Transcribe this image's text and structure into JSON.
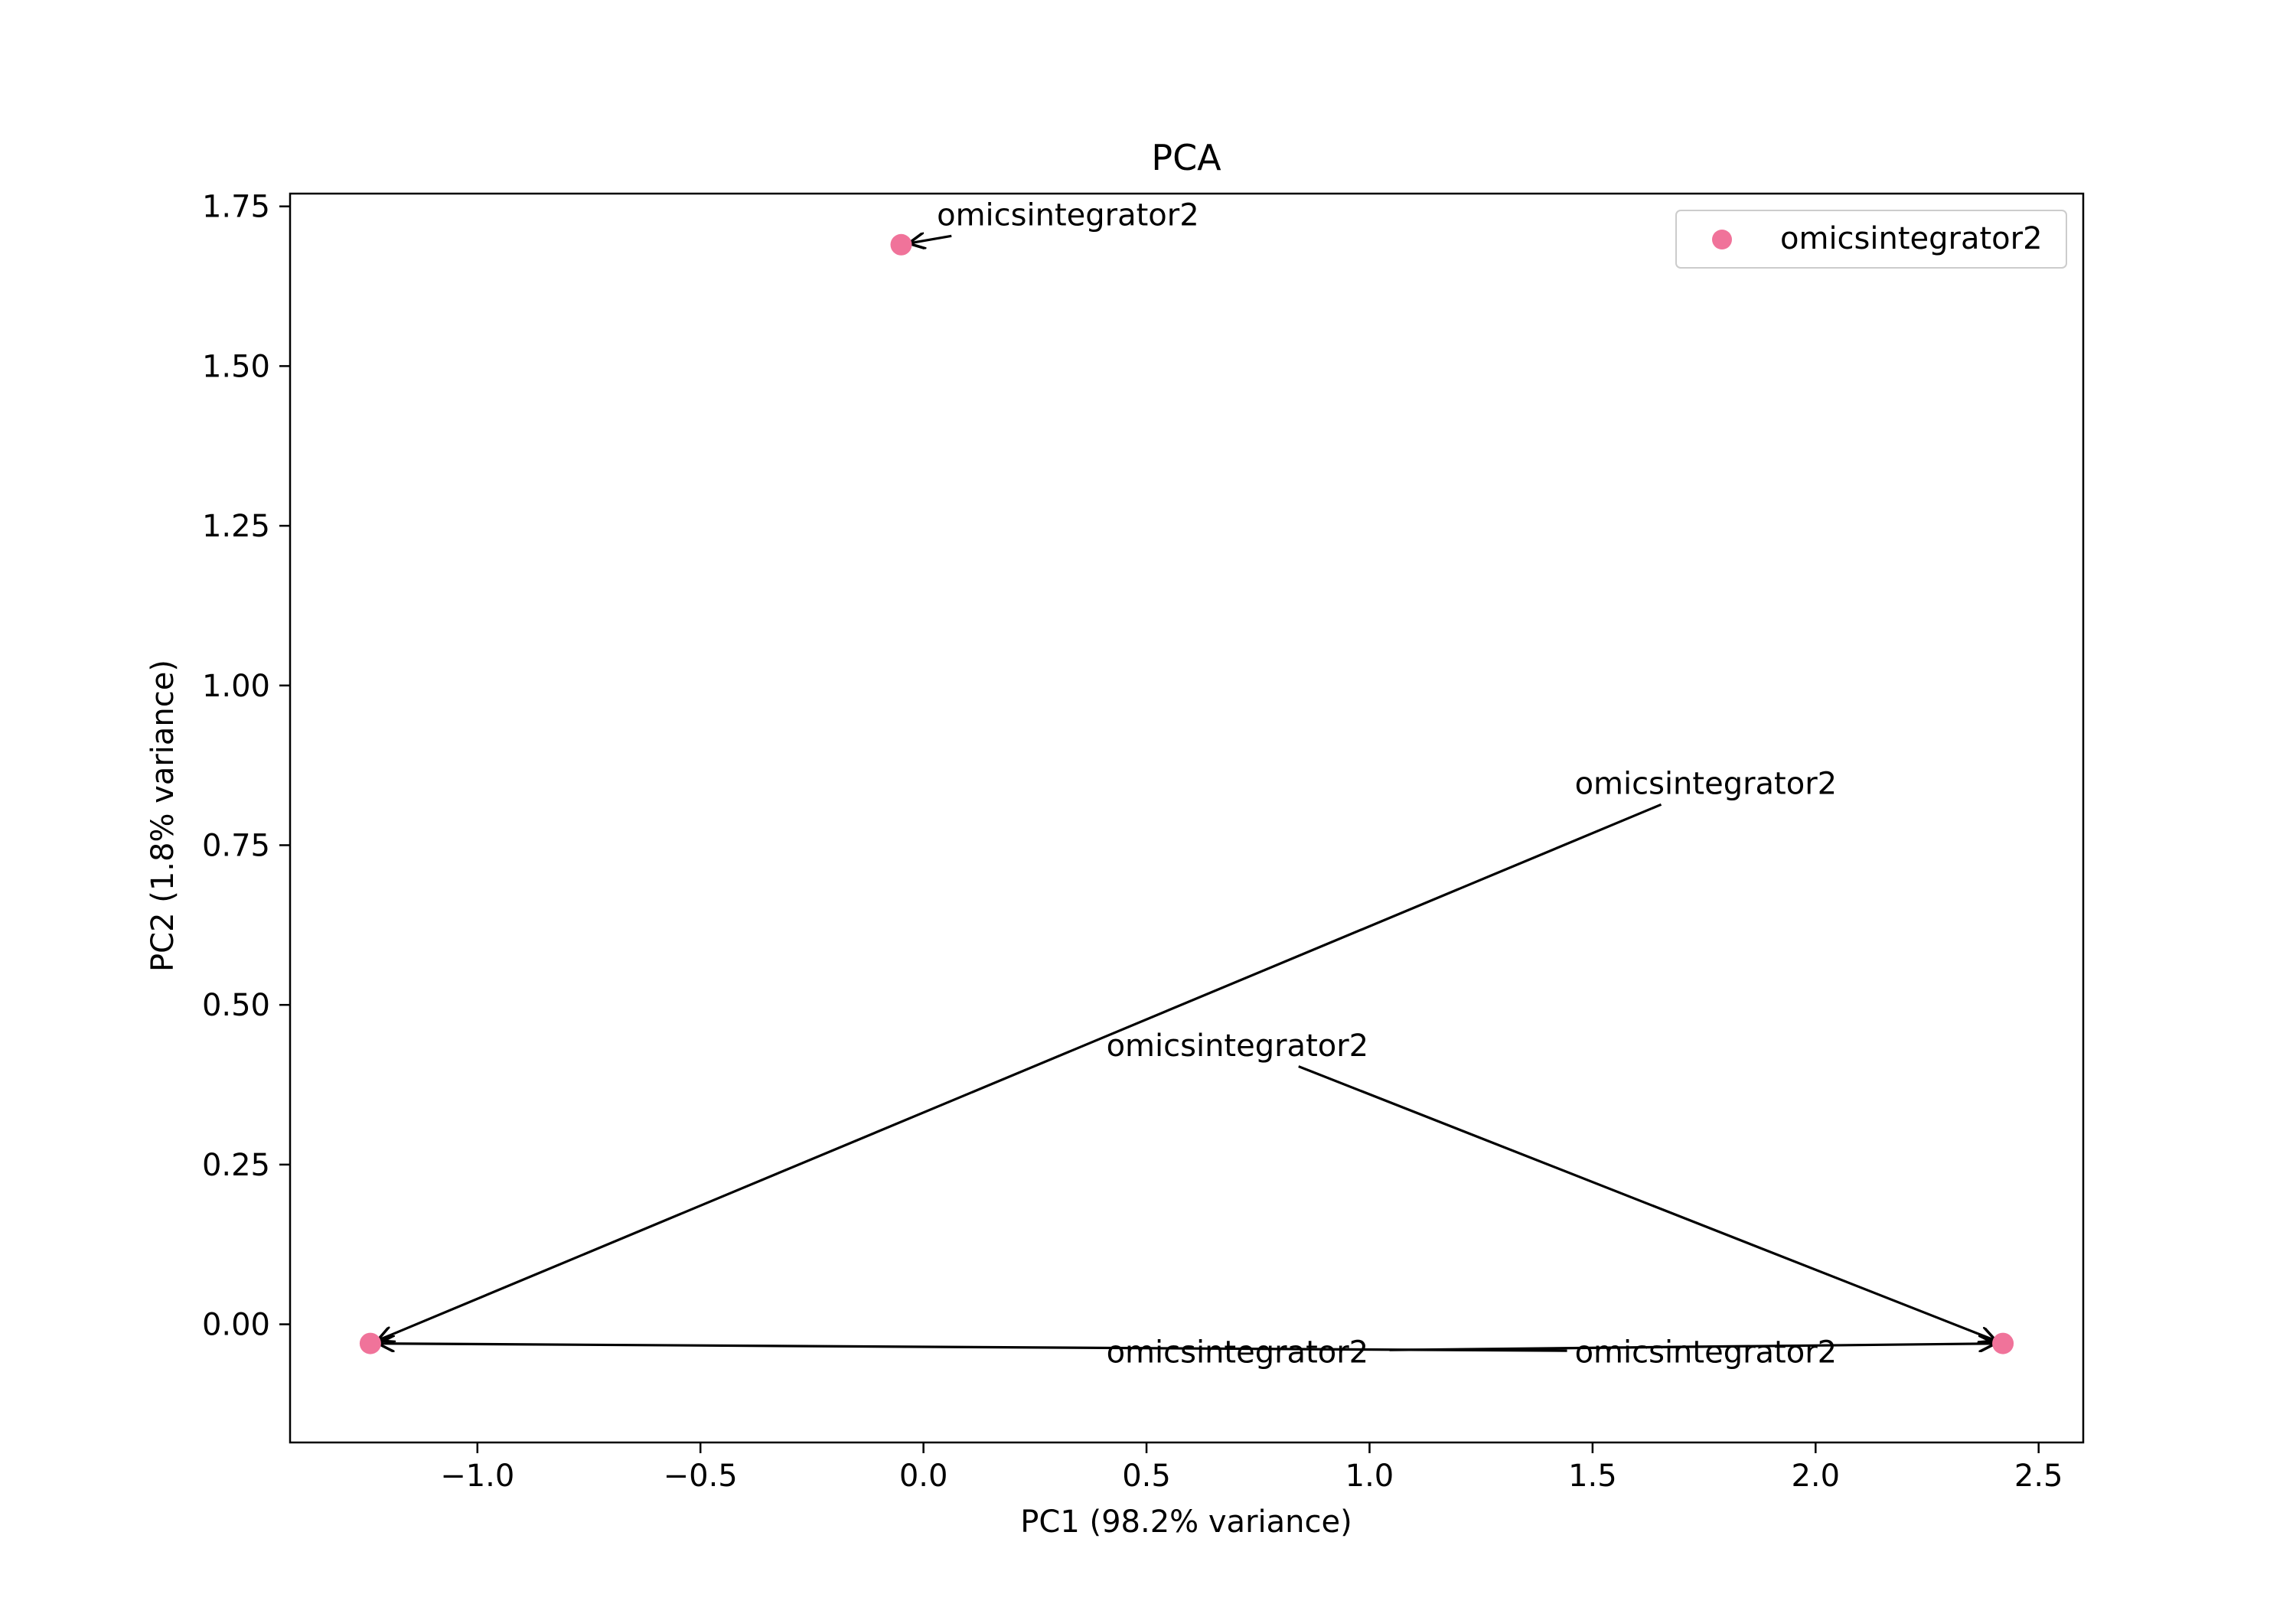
{
  "chart_data": {
    "type": "scatter",
    "title": "PCA",
    "xlabel": "PC1 (98.2% variance)",
    "ylabel": "PC2 (1.8% variance)",
    "xlim": [
      -1.42,
      2.6
    ],
    "ylim": [
      -0.185,
      1.77
    ],
    "xticks": [
      -1.0,
      -0.5,
      0.0,
      0.5,
      1.0,
      1.5,
      2.0,
      2.5
    ],
    "xtick_labels": [
      "−1.0",
      "−0.5",
      "0.0",
      "0.5",
      "1.0",
      "1.5",
      "2.0",
      "2.5"
    ],
    "yticks": [
      0.0,
      0.25,
      0.5,
      0.75,
      1.0,
      1.25,
      1.5,
      1.75
    ],
    "ytick_labels": [
      "0.00",
      "0.25",
      "0.50",
      "0.75",
      "1.00",
      "1.25",
      "1.50",
      "1.75"
    ],
    "grid": false,
    "legend_position": "top-right",
    "series": [
      {
        "name": "omicsintegrator2",
        "color": "#f0739a",
        "points": [
          {
            "x": -0.05,
            "y": 1.69
          },
          {
            "x": -1.24,
            "y": -0.03
          },
          {
            "x": 2.42,
            "y": -0.03
          }
        ]
      }
    ],
    "annotations": [
      {
        "text": "omicsintegrator2",
        "point_x": -0.05,
        "point_y": 1.69,
        "text_x": 0.03,
        "text_y": 1.72
      },
      {
        "text": "omicsintegrator2",
        "point_x": -1.24,
        "point_y": -0.03,
        "text_x": 1.46,
        "text_y": 0.83
      },
      {
        "text": "omicsintegrator2",
        "point_x": 2.42,
        "point_y": -0.03,
        "text_x": 0.41,
        "text_y": 0.42
      },
      {
        "text": "omicsintegrator2",
        "point_x": -1.24,
        "point_y": -0.03,
        "text_x": 1.46,
        "text_y": -0.06
      },
      {
        "text": "omicsintegrator2",
        "point_x": 2.42,
        "point_y": -0.03,
        "text_x": 0.41,
        "text_y": -0.06
      }
    ]
  }
}
